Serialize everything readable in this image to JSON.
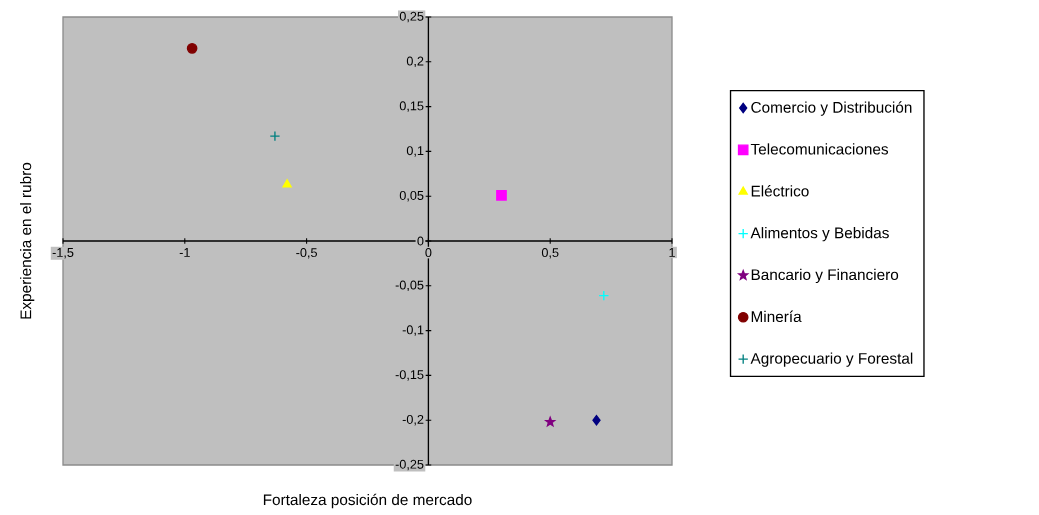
{
  "chart_data": {
    "type": "scatter",
    "xlabel": "Fortaleza posición de mercado",
    "ylabel": "Experiencia en el rubro",
    "xlim": [
      -1.5,
      1
    ],
    "ylim": [
      -0.25,
      0.25
    ],
    "xticks": [
      {
        "value": -1.5,
        "label": "-1,5"
      },
      -1,
      {
        "value": -0.5,
        "label": "-0,5"
      },
      0,
      {
        "value": 0.5,
        "label": "0,5"
      },
      1
    ],
    "yticks": [
      {
        "value": -0.25,
        "label": "-0,25"
      },
      {
        "value": -0.2,
        "label": "-0,2"
      },
      {
        "value": -0.15,
        "label": "-0,15"
      },
      {
        "value": -0.1,
        "label": "-0,1"
      },
      {
        "value": -0.05,
        "label": "-0,05"
      },
      0,
      {
        "value": 0.05,
        "label": "0,05"
      },
      {
        "value": 0.1,
        "label": "0,1"
      },
      {
        "value": 0.15,
        "label": "0,15"
      },
      {
        "value": 0.2,
        "label": "0,2"
      },
      {
        "value": 0.25,
        "label": "0,25"
      }
    ],
    "legend": "right",
    "series": [
      {
        "name": "Comercio y Distribución",
        "color": "#000080",
        "marker": "diamond",
        "x": [
          0.69
        ],
        "values": [
          -0.2
        ]
      },
      {
        "name": "Telecomunicaciones",
        "color": "#ff00ff",
        "marker": "square",
        "x": [
          0.3
        ],
        "values": [
          0.051
        ]
      },
      {
        "name": "Eléctrico",
        "color": "#ffff00",
        "marker": "triangle",
        "x": [
          -0.58
        ],
        "values": [
          0.063
        ]
      },
      {
        "name": "Alimentos y Bebidas",
        "color": "#00ffff",
        "marker": "cross",
        "x": [
          0.72
        ],
        "values": [
          -0.061
        ]
      },
      {
        "name": "Bancario y Financiero",
        "color": "#800080",
        "marker": "star",
        "x": [
          0.5
        ],
        "values": [
          -0.202
        ]
      },
      {
        "name": "Minería",
        "color": "#800000",
        "marker": "circle",
        "x": [
          -0.97
        ],
        "values": [
          0.215
        ]
      },
      {
        "name": "Agropecuario y Forestal",
        "color": "#008080",
        "marker": "cross",
        "x": [
          -0.63
        ],
        "values": [
          0.117
        ]
      }
    ]
  }
}
